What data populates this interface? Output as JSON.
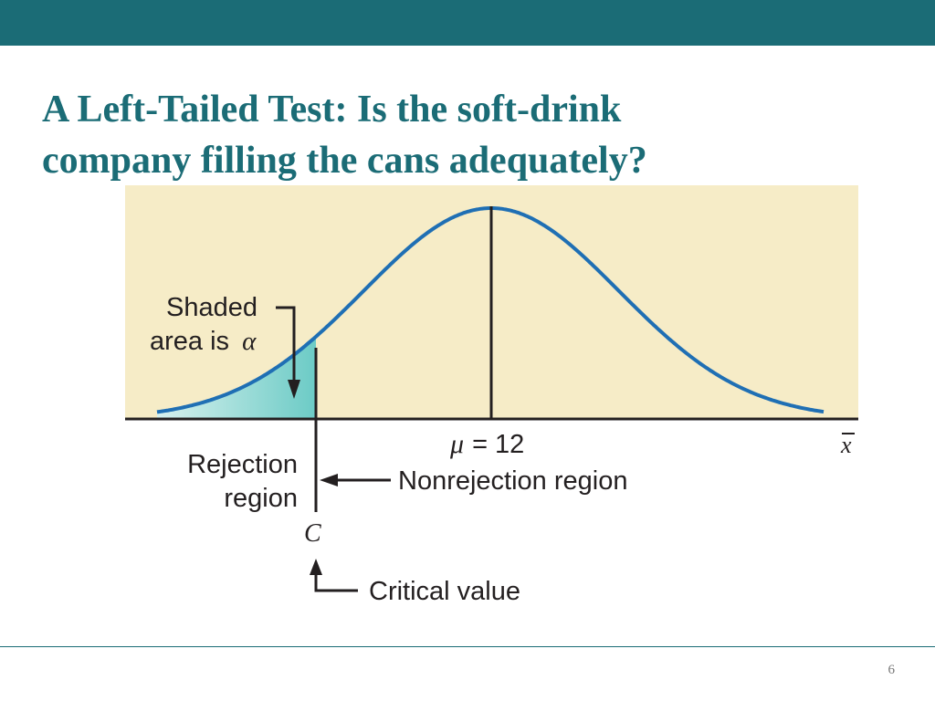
{
  "slide": {
    "title_line1": "A Left-Tailed Test: Is the soft-drink",
    "title_line2": "company filling the cans adequately?",
    "page_number": "6",
    "bar_color": "#1b6c76"
  },
  "diagram": {
    "shaded_label_line1": "Shaded",
    "shaded_label_line2": "area is",
    "alpha_symbol": "α",
    "mu_symbol": "μ",
    "mu_equals": "= 12",
    "xbar_symbol": "x",
    "rejection_line1": "Rejection",
    "rejection_line2": "region",
    "nonrejection_label": "Nonrejection region",
    "critical_symbol": "C",
    "critical_label": "Critical value",
    "colors": {
      "background": "#f6ecc7",
      "curve": "#1f6fb4",
      "shade": "#7ed3cf",
      "ink": "#231f20"
    }
  }
}
